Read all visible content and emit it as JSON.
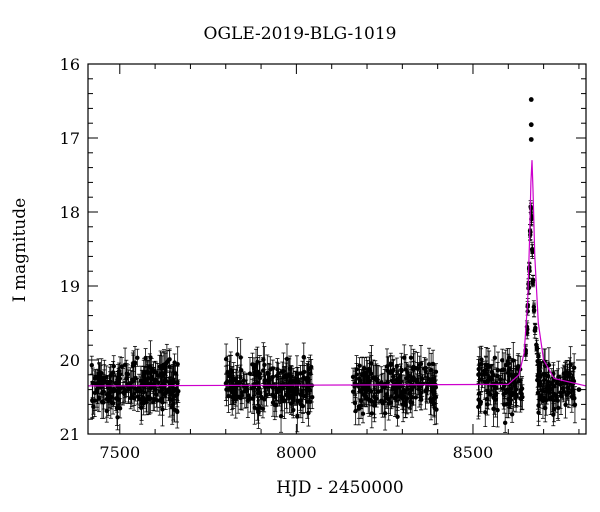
{
  "chart_data": {
    "type": "scatter",
    "title": "OGLE-2019-BLG-1019",
    "xlabel": "HJD - 2450000",
    "ylabel": "I magnitude",
    "xlim": [
      7410,
      8820
    ],
    "ylim": [
      21,
      16
    ],
    "y_inverted": true,
    "x_ticks": [
      7500,
      8000,
      8500
    ],
    "y_ticks": [
      16,
      17,
      18,
      19,
      20,
      21
    ],
    "grid": false,
    "colors": {
      "points": "#000000",
      "model": "#cc00cc"
    },
    "baseline_mag": 20.35,
    "model_curve": {
      "name": "model",
      "x": [
        7410,
        8600,
        8630,
        8645,
        8655,
        8660,
        8664,
        8667,
        8670,
        8675,
        8685,
        8700,
        8730,
        8820
      ],
      "y": [
        20.35,
        20.33,
        20.2,
        19.9,
        19.2,
        18.4,
        17.6,
        17.3,
        17.7,
        18.6,
        19.5,
        20.0,
        20.25,
        20.35
      ]
    },
    "seasons": [
      {
        "start": 7420,
        "end": 7670,
        "n": 220
      },
      {
        "start": 7800,
        "end": 8045,
        "n": 200
      },
      {
        "start": 8160,
        "end": 8400,
        "n": 200
      },
      {
        "start": 8515,
        "end": 8640,
        "n": 110
      },
      {
        "start": 8680,
        "end": 8790,
        "n": 90
      }
    ],
    "peak_points": [
      {
        "x": 8650,
        "y": 19.9
      },
      {
        "x": 8653,
        "y": 19.6
      },
      {
        "x": 8655,
        "y": 19.3
      },
      {
        "x": 8658,
        "y": 19.0
      },
      {
        "x": 8660,
        "y": 18.8
      },
      {
        "x": 8662,
        "y": 18.3
      },
      {
        "x": 8664,
        "y": 17.95
      },
      {
        "x": 8666,
        "y": 18.1
      },
      {
        "x": 8668,
        "y": 18.5
      },
      {
        "x": 8670,
        "y": 18.9
      },
      {
        "x": 8673,
        "y": 19.3
      },
      {
        "x": 8676,
        "y": 19.6
      },
      {
        "x": 8680,
        "y": 19.85
      },
      {
        "x": 8685,
        "y": 20.0
      },
      {
        "x": 8690,
        "y": 20.1
      }
    ],
    "outliers": [
      {
        "x": 8665,
        "y": 16.48
      },
      {
        "x": 8665,
        "y": 16.82
      },
      {
        "x": 8665,
        "y": 17.02
      },
      {
        "x": 8800,
        "y": 20.4
      }
    ]
  }
}
